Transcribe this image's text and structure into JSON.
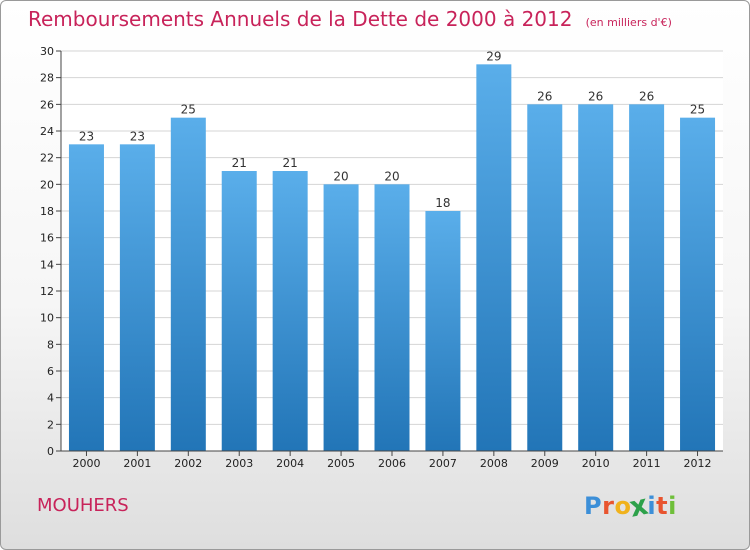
{
  "chart_data": {
    "type": "bar",
    "title": "Remboursements Annuels de la Dette de 2000 à 2012",
    "unit_note": "(en milliers d'€)",
    "categories": [
      "2000",
      "2001",
      "2002",
      "2003",
      "2004",
      "2005",
      "2006",
      "2007",
      "2008",
      "2009",
      "2010",
      "2011",
      "2012"
    ],
    "values": [
      23,
      23,
      25,
      21,
      21,
      20,
      20,
      18,
      29,
      26,
      26,
      26,
      25
    ],
    "ylim": [
      0,
      30
    ],
    "yticks": [
      0,
      2,
      4,
      6,
      8,
      10,
      12,
      14,
      16,
      18,
      20,
      22,
      24,
      26,
      28,
      30
    ],
    "grid": true,
    "bar_color_top": "#5aaeea",
    "bar_color_bottom": "#2275b7"
  },
  "commune": "MOUHERS",
  "logo": {
    "letters": [
      "P",
      "r",
      "o",
      "x",
      "i",
      "t",
      "i"
    ],
    "colors": [
      "#3c8fd8",
      "#e8542f",
      "#f0b21c",
      "#2da14a",
      "#3c8fd8",
      "#e8542f",
      "#6fbf3a"
    ]
  }
}
